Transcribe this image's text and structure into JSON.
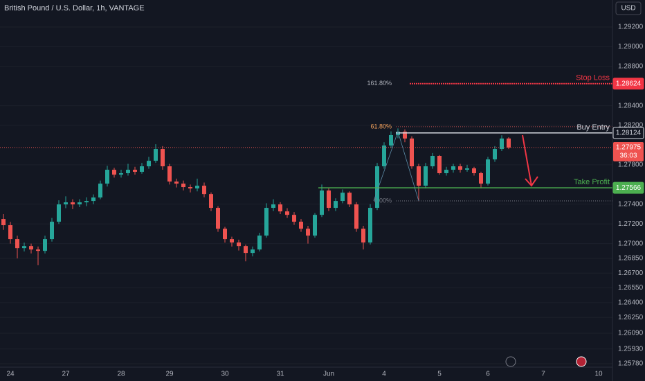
{
  "header": {
    "title": "British Pound / U.S. Dollar, 1h, VANTAGE",
    "currency": "USD"
  },
  "chart_data": {
    "type": "candlestick",
    "categories": [
      null,
      "24",
      null,
      null,
      null,
      null,
      null,
      null,
      null,
      "27",
      null,
      null,
      null,
      null,
      null,
      null,
      null,
      "28",
      null,
      null,
      null,
      null,
      null,
      null,
      "29",
      null,
      null,
      null,
      null,
      null,
      null,
      null,
      "30",
      null,
      null,
      null,
      null,
      null,
      null,
      null,
      "31",
      null,
      null,
      null,
      null,
      null,
      null,
      "Jun",
      null,
      null,
      null,
      null,
      null,
      null,
      null,
      "4",
      null,
      null,
      null,
      null,
      null,
      null,
      null,
      "5",
      null,
      null,
      null,
      null,
      null,
      null,
      "6",
      null,
      null,
      null,
      null,
      null,
      null,
      null,
      "7",
      null,
      null,
      null,
      null,
      null,
      null,
      null,
      "10",
      null
    ],
    "open": [
      1.2725,
      1.27187,
      1.27046,
      1.26954,
      1.26975,
      1.2694,
      1.26926,
      1.27046,
      1.27222,
      1.27398,
      1.27419,
      1.27398,
      1.27419,
      1.27433,
      1.27468,
      1.27609,
      1.2775,
      1.277,
      1.27715,
      1.2775,
      1.27729,
      1.27785,
      1.27841,
      1.27961,
      1.27785,
      1.2763,
      1.27609,
      1.27574,
      1.2756,
      1.27588,
      1.27503,
      1.27363,
      1.27151,
      1.27046,
      1.27011,
      1.26975,
      1.26905,
      1.2694,
      1.27081,
      1.27363,
      1.27398,
      1.27327,
      1.27292,
      1.27222,
      1.27151,
      1.27081,
      1.27292,
      1.27539,
      1.27363,
      1.27433,
      1.27517,
      1.27398,
      1.27151,
      1.27011,
      1.27363,
      1.27785,
      1.27996,
      1.28102,
      1.28137,
      1.28067,
      1.27785,
      1.27588,
      1.27785,
      1.27891,
      1.27715,
      1.2775,
      1.27785,
      1.2775,
      1.27764,
      1.27715,
      1.27609,
      1.27855,
      1.27961,
      1.28067,
      null,
      null,
      null,
      null,
      null,
      null,
      null,
      null,
      null,
      null,
      null,
      null,
      null,
      null
    ],
    "high": [
      1.273,
      1.2722,
      1.2708,
      1.2701,
      1.27,
      1.2697,
      1.2708,
      1.2726,
      1.2744,
      1.2748,
      1.2745,
      1.2745,
      1.2747,
      1.275,
      1.2764,
      1.2779,
      1.2777,
      1.2775,
      1.2781,
      1.2778,
      1.2782,
      1.2788,
      1.2801,
      1.2799,
      1.2781,
      1.2766,
      1.2764,
      1.276,
      1.2766,
      1.2762,
      1.2752,
      1.2738,
      1.2717,
      1.2707,
      1.2704,
      1.2699,
      1.2697,
      1.2711,
      1.2741,
      1.2745,
      1.2742,
      1.2736,
      1.2732,
      1.2725,
      1.2718,
      1.2731,
      1.276,
      1.2756,
      1.2746,
      1.2755,
      1.2753,
      1.2742,
      1.2718,
      1.274,
      1.2782,
      1.2803,
      1.2814,
      1.2817,
      1.2816,
      1.2809,
      1.2781,
      1.2782,
      1.2792,
      1.279,
      1.2778,
      1.2781,
      1.2781,
      1.278,
      1.2778,
      1.2773,
      1.2788,
      1.2799,
      1.281,
      1.2808,
      null,
      null,
      null,
      null,
      null,
      null,
      null,
      null,
      null,
      null,
      null,
      null,
      null,
      null
    ],
    "low": [
      1.2714,
      1.27,
      1.2685,
      1.2692,
      1.269,
      1.2678,
      1.269,
      1.2702,
      1.272,
      1.2736,
      1.2735,
      1.2737,
      1.2738,
      1.274,
      1.2745,
      1.2758,
      1.2767,
      1.2767,
      1.2769,
      1.277,
      1.2771,
      1.2776,
      1.2782,
      1.2775,
      1.276,
      1.2757,
      1.2754,
      1.2752,
      1.2753,
      1.2747,
      1.2733,
      1.2712,
      1.2701,
      1.2697,
      1.2693,
      1.2682,
      1.2687,
      1.2692,
      1.2706,
      1.2733,
      1.273,
      1.2726,
      1.2719,
      1.2712,
      1.27,
      1.2706,
      1.2727,
      1.2733,
      1.2733,
      1.2741,
      1.2737,
      1.2712,
      1.2694,
      1.2699,
      1.2734,
      1.2776,
      1.2797,
      1.2807,
      1.2803,
      1.2776,
      1.2743,
      1.2756,
      1.2776,
      1.277,
      1.2769,
      1.2772,
      1.2772,
      1.2773,
      1.2769,
      1.2756,
      1.2759,
      1.2783,
      1.2794,
      1.2796,
      null,
      null,
      null,
      null,
      null,
      null,
      null,
      null,
      null,
      null,
      null,
      null,
      null,
      null
    ],
    "close": [
      1.27187,
      1.27046,
      1.26954,
      1.26975,
      1.2694,
      1.26926,
      1.27046,
      1.27222,
      1.27398,
      1.27419,
      1.27398,
      1.27419,
      1.27433,
      1.27468,
      1.27609,
      1.2775,
      1.277,
      1.27715,
      1.2775,
      1.27729,
      1.27785,
      1.27841,
      1.27961,
      1.27785,
      1.2763,
      1.27609,
      1.27574,
      1.2756,
      1.27588,
      1.27503,
      1.27363,
      1.27151,
      1.27046,
      1.27011,
      1.26975,
      1.26905,
      1.2694,
      1.27081,
      1.27363,
      1.27398,
      1.27327,
      1.27292,
      1.27222,
      1.27151,
      1.27081,
      1.27292,
      1.27539,
      1.27363,
      1.27433,
      1.27517,
      1.27398,
      1.27151,
      1.27011,
      1.27363,
      1.27785,
      1.27996,
      1.28102,
      1.28137,
      1.28067,
      1.27785,
      1.27588,
      1.27785,
      1.27891,
      1.27715,
      1.2775,
      1.27785,
      1.2775,
      1.27764,
      1.27715,
      1.27609,
      1.27855,
      1.27961,
      1.28067,
      1.27975,
      null,
      null,
      null,
      null,
      null,
      null,
      null,
      null,
      null,
      null,
      null,
      null,
      null,
      null
    ],
    "colors": {
      "up": "#26a69a",
      "down": "#ef5350"
    },
    "ylim": [
      1.25745,
      1.29474
    ],
    "yticks": [
      {
        "value": 1.292,
        "label": "1.29200"
      },
      {
        "value": 1.29,
        "label": "1.29000"
      },
      {
        "value": 1.288,
        "label": "1.28800"
      },
      {
        "value": 1.284,
        "label": "1.28400"
      },
      {
        "value": 1.282,
        "label": "1.28200"
      },
      {
        "value": 1.278,
        "label": "1.27800"
      },
      {
        "value": 1.274,
        "label": "1.27400"
      },
      {
        "value": 1.272,
        "label": "1.27200"
      },
      {
        "value": 1.27,
        "label": "1.27000"
      },
      {
        "value": 1.2685,
        "label": "1.26850"
      },
      {
        "value": 1.267,
        "label": "1.26700"
      },
      {
        "value": 1.2655,
        "label": "1.26550"
      },
      {
        "value": 1.264,
        "label": "1.26400"
      },
      {
        "value": 1.2625,
        "label": "1.26250"
      },
      {
        "value": 1.2609,
        "label": "1.26090"
      },
      {
        "value": 1.2593,
        "label": "1.25930"
      },
      {
        "value": 1.2578,
        "label": "1.25780"
      }
    ],
    "grid": true,
    "current_price": 1.27975,
    "countdown": "36:03",
    "levels": [
      {
        "name": "Stop Loss",
        "value": 1.28624,
        "color": "#f23645"
      },
      {
        "name": "Buy Entry",
        "value": 1.28124,
        "color": "#d1d4dc"
      },
      {
        "name": "Take Profit",
        "value": 1.27566,
        "color": "#4caf50"
      }
    ],
    "fib_levels": [
      {
        "label": "161.80%",
        "value": 1.28624,
        "color": "#b2b5be"
      },
      {
        "label": "61.80%",
        "value": 1.28187,
        "color": "#f7a35c"
      },
      {
        "label": "0.00%",
        "value": 1.27434,
        "color": "#787b86"
      }
    ]
  }
}
